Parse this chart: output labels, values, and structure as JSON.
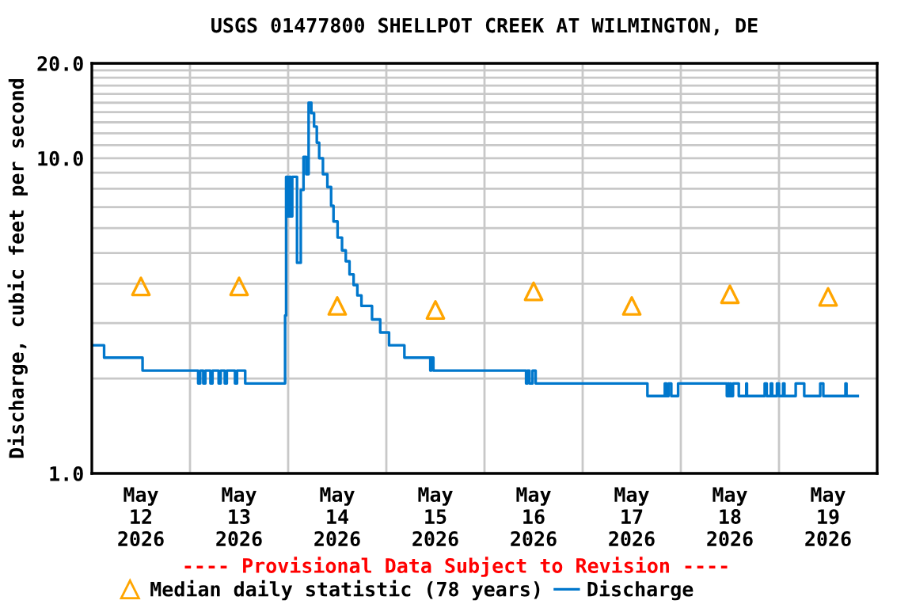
{
  "chart_data": {
    "type": "step",
    "title": "USGS 01477800 SHELLPOT CREEK AT WILMINGTON, DE",
    "ylabel": "Discharge, cubic feet per second",
    "log": "y",
    "grid": true,
    "legend": "bottom",
    "annotations": [
      "---- Provisional Data Subject to Revision ----"
    ],
    "xlim": [
      "2026-05-12T00:00",
      "2026-05-20T00:00"
    ],
    "xticks": [
      {
        "value": "2026-05-12T12:00",
        "label": "May\n12\n2026"
      },
      {
        "value": "2026-05-13T00:00",
        "label": null
      },
      {
        "value": "2026-05-13T12:00",
        "label": "May\n13\n2026"
      },
      {
        "value": "2026-05-14T00:00",
        "label": null
      },
      {
        "value": "2026-05-14T12:00",
        "label": "May\n14\n2026"
      },
      {
        "value": "2026-05-15T00:00",
        "label": null
      },
      {
        "value": "2026-05-15T12:00",
        "label": "May\n15\n2026"
      },
      {
        "value": "2026-05-16T00:00",
        "label": null
      },
      {
        "value": "2026-05-16T12:00",
        "label": "May\n16\n2026"
      },
      {
        "value": "2026-05-17T00:00",
        "label": null
      },
      {
        "value": "2026-05-17T12:00",
        "label": "May\n17\n2026"
      },
      {
        "value": "2026-05-18T00:00",
        "label": null
      },
      {
        "value": "2026-05-18T12:00",
        "label": "May\n18\n2026"
      },
      {
        "value": "2026-05-19T00:00",
        "label": null
      },
      {
        "value": "2026-05-19T12:00",
        "label": "May\n19\n2026"
      }
    ],
    "ylim": [
      1,
      20
    ],
    "yticks": [
      {
        "value": 1,
        "label": "1.0"
      },
      {
        "value": 2,
        "label": null
      },
      {
        "value": 3,
        "label": null
      },
      {
        "value": 4,
        "label": null
      },
      {
        "value": 5,
        "label": null
      },
      {
        "value": 6,
        "label": null
      },
      {
        "value": 7,
        "label": null
      },
      {
        "value": 8,
        "label": null
      },
      {
        "value": 9,
        "label": null
      },
      {
        "value": 10,
        "label": "10.0"
      },
      {
        "value": 11,
        "label": null
      },
      {
        "value": 12,
        "label": null
      },
      {
        "value": 13,
        "label": null
      },
      {
        "value": 14,
        "label": null
      },
      {
        "value": 15,
        "label": null
      },
      {
        "value": 16,
        "label": null
      },
      {
        "value": 17,
        "label": null
      },
      {
        "value": 18,
        "label": null
      },
      {
        "value": 19,
        "label": null
      },
      {
        "value": 20,
        "label": "20.0"
      }
    ],
    "series": [
      {
        "name": "Median daily statistic (78 years)",
        "type": "scatter",
        "marker": "triangle",
        "color": "#ffa500",
        "x": [
          "2026-05-12T12:00",
          "2026-05-13T12:00",
          "2026-05-14T12:00",
          "2026-05-15T12:00",
          "2026-05-16T12:00",
          "2026-05-17T12:00",
          "2026-05-18T12:00",
          "2026-05-19T12:00"
        ],
        "values": [
          3.92,
          3.92,
          3.4,
          3.3,
          3.78,
          3.4,
          3.7,
          3.63
        ]
      },
      {
        "name": "Discharge",
        "color": "#0077cc",
        "line_style": "solid",
        "x": [
          "2026-05-12T00:00",
          "2026-05-12T03:00",
          "2026-05-12T12:24",
          "2026-05-13T02:00",
          "2026-05-13T02:30",
          "2026-05-13T03:15",
          "2026-05-13T03:45",
          "2026-05-13T05:00",
          "2026-05-13T05:30",
          "2026-05-13T07:00",
          "2026-05-13T07:30",
          "2026-05-13T08:30",
          "2026-05-13T09:00",
          "2026-05-13T11:00",
          "2026-05-13T11:30",
          "2026-05-13T13:30",
          "2026-05-13T23:15",
          "2026-05-13T23:30",
          "2026-05-14T00:00",
          "2026-05-14T00:15",
          "2026-05-14T00:40",
          "2026-05-14T01:00",
          "2026-05-14T02:10",
          "2026-05-14T03:05",
          "2026-05-14T03:45",
          "2026-05-14T04:25",
          "2026-05-14T05:00",
          "2026-05-14T05:40",
          "2026-05-14T06:20",
          "2026-05-14T07:00",
          "2026-05-14T07:35",
          "2026-05-14T08:30",
          "2026-05-14T09:35",
          "2026-05-14T10:30",
          "2026-05-14T11:05",
          "2026-05-14T12:05",
          "2026-05-14T13:10",
          "2026-05-14T14:05",
          "2026-05-14T15:00",
          "2026-05-14T16:00",
          "2026-05-14T16:55",
          "2026-05-14T17:55",
          "2026-05-14T20:30",
          "2026-05-14T22:30",
          "2026-05-15T00:40",
          "2026-05-15T04:25",
          "2026-05-15T10:45",
          "2026-05-15T11:00",
          "2026-05-15T11:30",
          "2026-05-16T10:10",
          "2026-05-16T10:30",
          "2026-05-16T11:00",
          "2026-05-16T11:45",
          "2026-05-16T12:30",
          "2026-05-17T15:50",
          "2026-05-17T20:05",
          "2026-05-17T20:30",
          "2026-05-17T21:00",
          "2026-05-17T21:40",
          "2026-05-17T23:20",
          "2026-05-18T11:15",
          "2026-05-18T11:30",
          "2026-05-18T11:45",
          "2026-05-18T12:00",
          "2026-05-18T12:15",
          "2026-05-18T12:45",
          "2026-05-18T14:10",
          "2026-05-18T16:00",
          "2026-05-18T16:10",
          "2026-05-18T20:30",
          "2026-05-18T21:00",
          "2026-05-18T22:00",
          "2026-05-18T22:20",
          "2026-05-18T23:30",
          "2026-05-19T00:00",
          "2026-05-19T01:00",
          "2026-05-19T01:20",
          "2026-05-19T04:05",
          "2026-05-19T06:10",
          "2026-05-19T10:05",
          "2026-05-19T10:50",
          "2026-05-19T16:15",
          "2026-05-19T16:30",
          "2026-05-19T19:15"
        ],
        "values": [
          2.55,
          2.33,
          2.12,
          1.93,
          2.12,
          1.93,
          2.12,
          1.93,
          2.12,
          1.93,
          2.12,
          1.93,
          2.12,
          1.93,
          2.12,
          1.93,
          3.17,
          8.73,
          6.54,
          8.73,
          6.54,
          8.73,
          4.66,
          7.93,
          10.1,
          8.9,
          15.0,
          13.9,
          12.6,
          11.2,
          10.0,
          8.9,
          8.1,
          7.07,
          6.3,
          5.6,
          5.1,
          4.71,
          4.28,
          3.96,
          3.67,
          3.4,
          3.08,
          2.8,
          2.55,
          2.33,
          2.12,
          2.33,
          2.12,
          1.93,
          2.12,
          1.93,
          2.12,
          1.93,
          1.76,
          1.93,
          1.76,
          1.93,
          1.76,
          1.93,
          1.76,
          1.93,
          1.76,
          1.93,
          1.76,
          1.93,
          1.76,
          1.93,
          1.76,
          1.93,
          1.76,
          1.93,
          1.76,
          1.93,
          1.76,
          1.93,
          1.76,
          1.93,
          1.76,
          1.93,
          1.76,
          1.93,
          1.76,
          1.76
        ]
      }
    ]
  }
}
